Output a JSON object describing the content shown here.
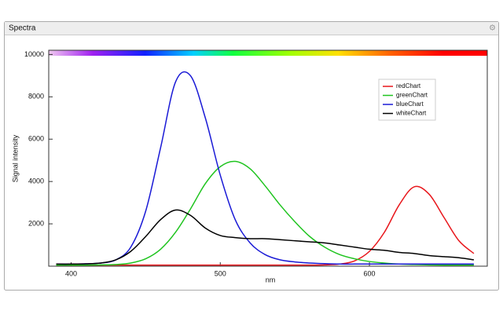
{
  "panel_title": "Spectra",
  "chart_data": {
    "type": "line",
    "x_label": "nm",
    "y_label": "Signal intensity",
    "x": [
      390,
      400,
      410,
      420,
      430,
      440,
      450,
      460,
      470,
      480,
      490,
      500,
      510,
      520,
      530,
      540,
      550,
      560,
      570,
      580,
      590,
      600,
      610,
      620,
      630,
      640,
      650,
      660,
      670
    ],
    "xlim": [
      385,
      679
    ],
    "xticks": [
      400,
      500,
      600
    ],
    "ylim": [
      0,
      10200
    ],
    "yticks": [
      2000,
      4000,
      6000,
      8000,
      10000
    ],
    "legend": "upper right",
    "series": [
      {
        "name": "redChart",
        "color": "#e8161b",
        "values": [
          50,
          50,
          50,
          50,
          50,
          50,
          50,
          50,
          50,
          50,
          50,
          50,
          50,
          50,
          50,
          50,
          50,
          50,
          60,
          100,
          250,
          700,
          1600,
          2900,
          3750,
          3400,
          2300,
          1200,
          600
        ]
      },
      {
        "name": "greenChart",
        "color": "#1fc41f",
        "values": [
          50,
          50,
          50,
          60,
          80,
          150,
          350,
          800,
          1600,
          2700,
          3900,
          4700,
          4950,
          4600,
          3800,
          2900,
          2100,
          1400,
          900,
          550,
          350,
          220,
          150,
          100,
          80,
          60,
          50,
          50,
          50
        ]
      },
      {
        "name": "blueChart",
        "color": "#1a1ad6",
        "values": [
          100,
          100,
          110,
          150,
          300,
          900,
          2600,
          5600,
          8700,
          9000,
          7000,
          4300,
          2200,
          1100,
          550,
          300,
          200,
          150,
          120,
          100,
          100,
          100,
          100,
          100,
          100,
          100,
          100,
          100,
          100
        ]
      },
      {
        "name": "whiteChart",
        "color": "#000000",
        "values": [
          100,
          100,
          110,
          150,
          300,
          700,
          1400,
          2200,
          2650,
          2400,
          1800,
          1450,
          1350,
          1300,
          1300,
          1250,
          1200,
          1150,
          1100,
          1000,
          900,
          800,
          750,
          650,
          600,
          500,
          450,
          400,
          300
        ]
      }
    ]
  }
}
